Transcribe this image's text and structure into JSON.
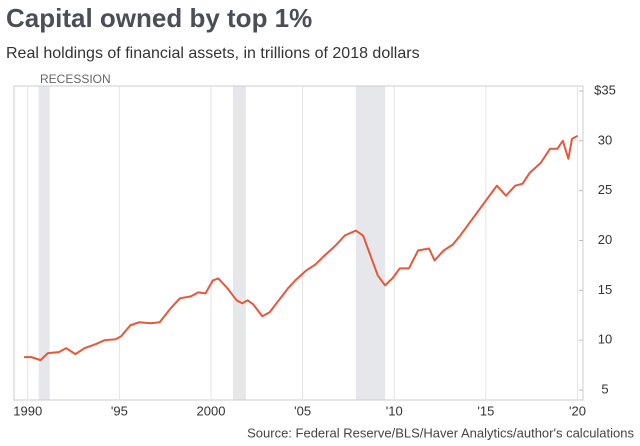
{
  "chart_data": {
    "type": "line",
    "title": "Capital owned by top 1%",
    "subtitle": "Real holdings of financial assets, in trillions of 2018 dollars",
    "source": "Source: Federal Reserve/BLS/Haver Analytics/author's calculations",
    "recession_label": "RECESSION",
    "recessions": [
      [
        1990.6,
        1991.2
      ],
      [
        2001.2,
        2001.9
      ],
      [
        2007.9,
        2009.5
      ]
    ],
    "recession_color": "#e6e7ea",
    "series": [
      {
        "name": "Top 1%",
        "color": "#e8573c",
        "x": [
          1989.8,
          1990.2,
          1990.7,
          1991.1,
          1991.7,
          1992.1,
          1992.6,
          1993.1,
          1993.7,
          1994.2,
          1994.8,
          1995.1,
          1995.6,
          1996.1,
          1996.7,
          1997.2,
          1997.8,
          1998.3,
          1998.9,
          1999.3,
          1999.7,
          2000.1,
          2000.4,
          2000.9,
          2001.4,
          2001.7,
          2002.0,
          2002.3,
          2002.8,
          2003.2,
          2003.7,
          2004.2,
          2004.6,
          2005.2,
          2005.7,
          2006.2,
          2006.8,
          2007.3,
          2007.9,
          2008.3,
          2008.7,
          2009.1,
          2009.5,
          2009.9,
          2010.3,
          2010.8,
          2011.3,
          2011.9,
          2012.2,
          2012.7,
          2013.2,
          2013.6,
          2014.0,
          2014.6,
          2015.0,
          2015.6,
          2016.1,
          2016.6,
          2017.0,
          2017.4,
          2018.0,
          2018.5,
          2018.9,
          2019.2,
          2019.5,
          2019.7,
          2020.0
        ],
        "values": [
          8.3,
          8.3,
          8.0,
          8.7,
          8.8,
          9.2,
          8.6,
          9.2,
          9.6,
          10.0,
          10.1,
          10.4,
          11.5,
          11.8,
          11.7,
          11.8,
          13.2,
          14.2,
          14.4,
          14.8,
          14.7,
          16.0,
          16.2,
          15.2,
          14.0,
          13.7,
          14.0,
          13.6,
          12.4,
          12.8,
          14.0,
          15.2,
          16.0,
          17.0,
          17.6,
          18.5,
          19.5,
          20.5,
          21.0,
          20.5,
          18.5,
          16.5,
          15.5,
          16.2,
          17.2,
          17.2,
          19.0,
          19.2,
          18.0,
          19.0,
          19.6,
          20.5,
          21.5,
          23.0,
          24.0,
          25.5,
          24.5,
          25.5,
          25.7,
          26.8,
          27.8,
          29.2,
          29.2,
          30.0,
          28.2,
          30.2,
          30.5
        ]
      }
    ],
    "xlim": [
      1989.25,
      2020.3
    ],
    "xticks": [
      {
        "value": 1990,
        "label": "1990"
      },
      {
        "value": 1995,
        "label": "'95"
      },
      {
        "value": 2000,
        "label": "2000"
      },
      {
        "value": 2005,
        "label": "'05"
      },
      {
        "value": 2010,
        "label": "'10"
      },
      {
        "value": 2015,
        "label": "'15"
      },
      {
        "value": 2020,
        "label": "'20"
      }
    ],
    "ylim": [
      4,
      35.5
    ],
    "yticks": [
      {
        "value": 35,
        "label": "$35"
      },
      30,
      25,
      20,
      15,
      10,
      5
    ],
    "grid": true
  }
}
